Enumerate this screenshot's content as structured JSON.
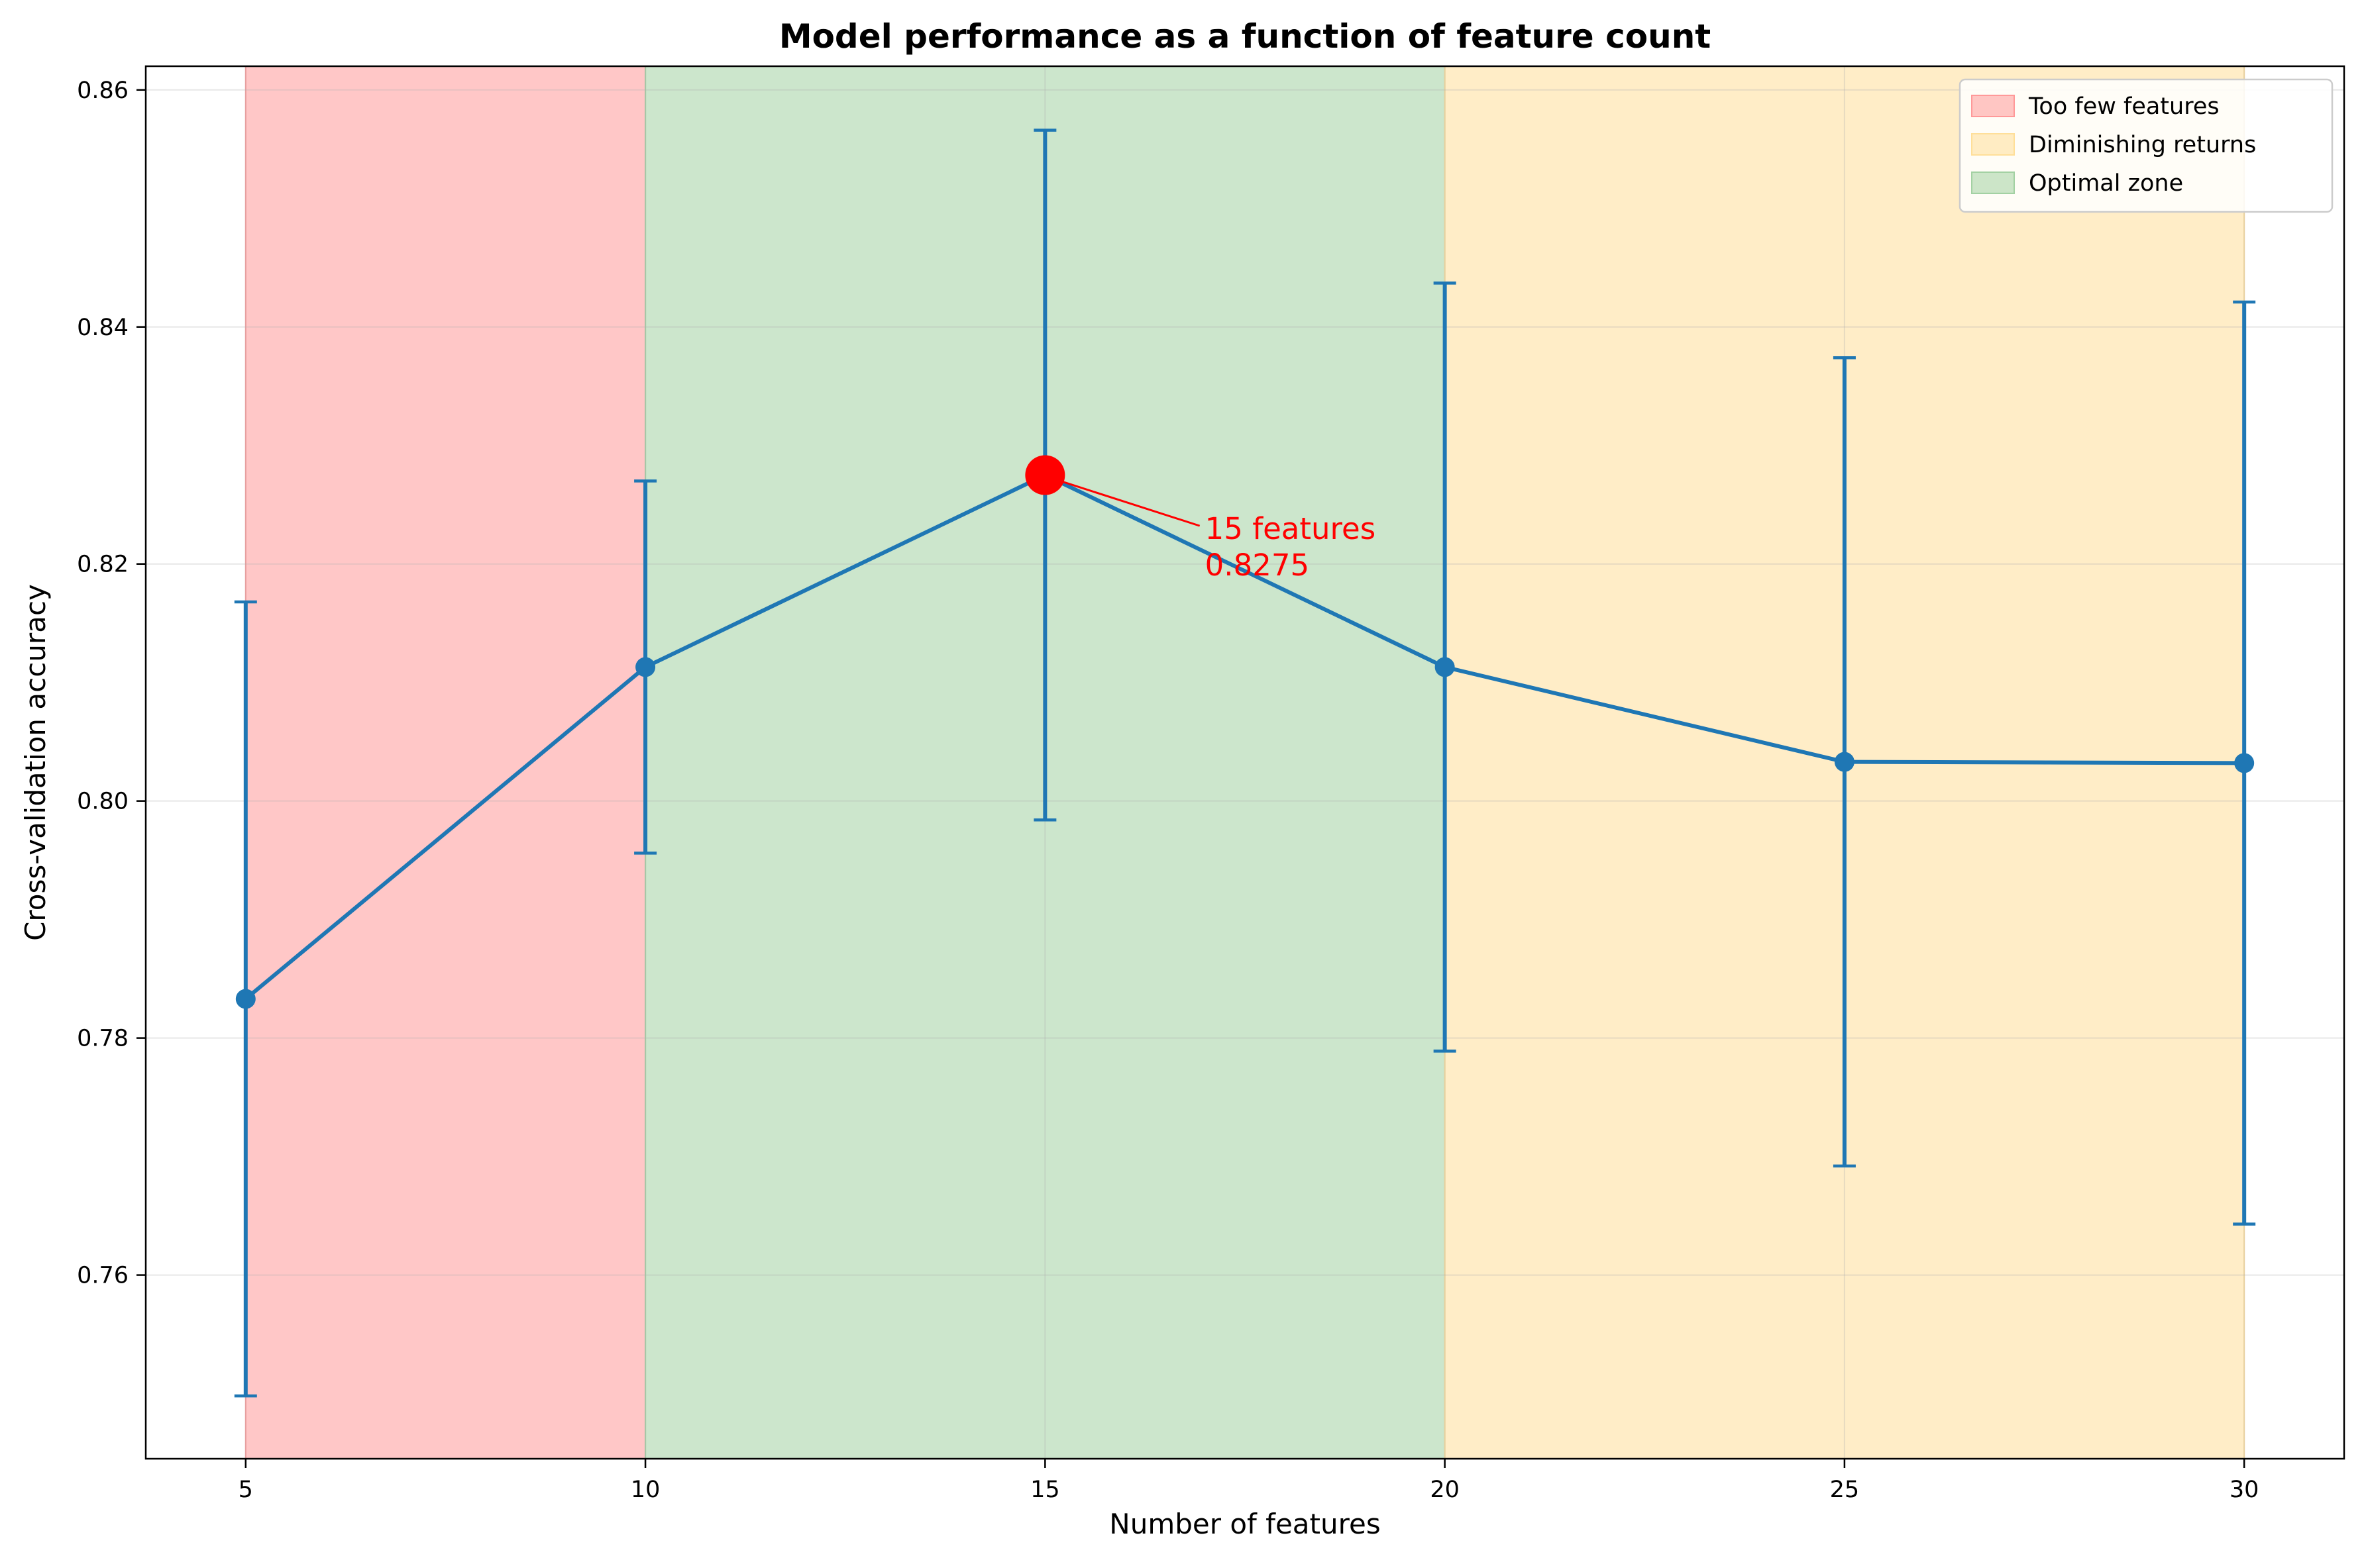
{
  "chart_data": {
    "type": "line",
    "title": "Model performance as a function of feature count",
    "xlabel": "Number of features",
    "ylabel": "Cross-validation accuracy",
    "xlim": [
      3.75,
      31.25
    ],
    "ylim": [
      0.7445,
      0.862
    ],
    "xticks": [
      5,
      10,
      15,
      20,
      25,
      30
    ],
    "yticks": [
      0.76,
      0.78,
      0.8,
      0.82,
      0.84,
      0.86
    ],
    "ytick_labels": [
      "0.76",
      "0.78",
      "0.80",
      "0.82",
      "0.84",
      "0.86"
    ],
    "grid": true,
    "legend_placement": "top-right",
    "series": [
      {
        "x": [
          5,
          10,
          15,
          20,
          25,
          30
        ],
        "y": [
          0.7833,
          0.8113,
          0.8275,
          0.8113,
          0.8033,
          0.8032
        ],
        "err": [
          0.0335,
          0.0157,
          0.0291,
          0.0324,
          0.0341,
          0.0389
        ],
        "color": "#1f77b4"
      }
    ],
    "regions": [
      {
        "label": "Too few features",
        "x0": 5,
        "x1": 10,
        "color": "#ff9999",
        "legend_order": 0
      },
      {
        "label": "Optimal zone",
        "x0": 10,
        "x1": 20,
        "color": "#a3d1a3",
        "legend_order": 2
      },
      {
        "label": "Diminishing returns",
        "x0": 20,
        "x1": 30,
        "color": "#ffdf99",
        "legend_order": 1
      }
    ],
    "highlight": {
      "x": 15,
      "y": 0.8275,
      "color": "#ff0000",
      "label_line1": "15 features",
      "label_line2": "0.8275",
      "text_x": 17,
      "text_y": 0.8221
    }
  }
}
